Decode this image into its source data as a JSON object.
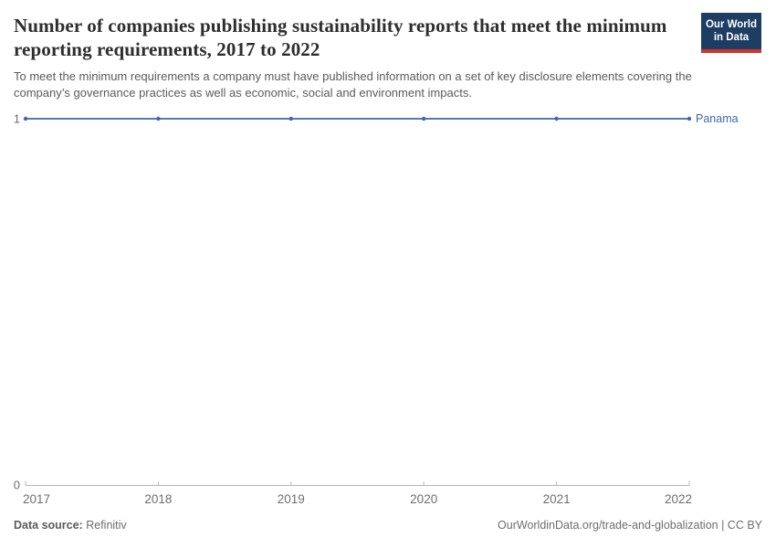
{
  "header": {
    "title": "Number of companies publishing sustainability reports that meet the minimum reporting requirements, 2017 to 2022",
    "subtitle": "To meet the minimum requirements a company must have published information on a set of key disclosure elements covering the company’s governance practices as well as economic, social and environment impacts."
  },
  "logo": {
    "text": "Our World in Data",
    "background_color": "#1d3d63",
    "accent_color": "#d0342c"
  },
  "chart_data": {
    "type": "line",
    "title": "Number of companies publishing sustainability reports that meet the minimum reporting requirements, 2017 to 2022",
    "x": [
      2017,
      2018,
      2019,
      2020,
      2021,
      2022
    ],
    "x_tick_labels": [
      "2017",
      "2018",
      "2019",
      "2020",
      "2021",
      "2022"
    ],
    "series": [
      {
        "name": "Panama",
        "values": [
          1,
          1,
          1,
          1,
          1,
          1
        ],
        "color": "#4166ac"
      }
    ],
    "ylim": [
      0,
      1
    ],
    "yticks": [
      0,
      1
    ],
    "ytick_labels": [
      "0",
      "1"
    ],
    "grid": false,
    "legend_position": "end-of-line-label",
    "axis_color": "#b6b6b6",
    "tick_label_color": "#6e6e6e"
  },
  "footer": {
    "data_source_label": "Data source:",
    "data_source_value": "Refinitiv",
    "citation": "OurWorldinData.org/trade-and-globalization | CC BY"
  }
}
